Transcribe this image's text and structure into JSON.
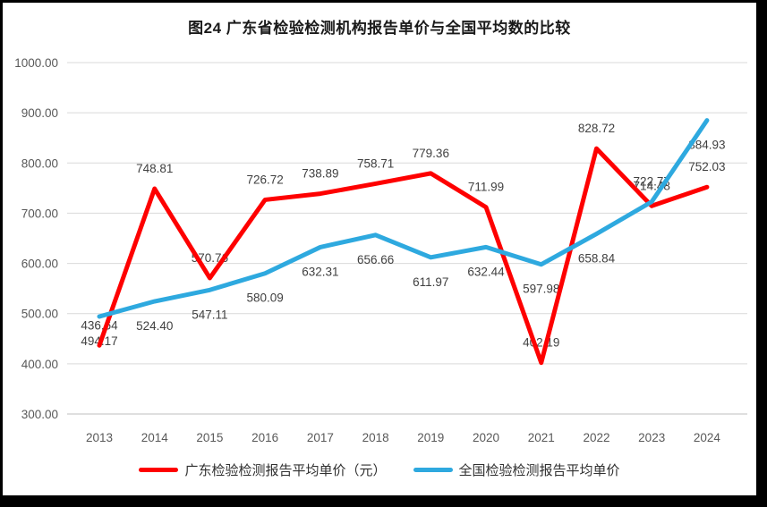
{
  "title": "图24  广东省检验检测机构报告单价与全国平均数的比较",
  "chart_data": {
    "type": "line",
    "title": "图24  广东省检验检测机构报告单价与全国平均数的比较",
    "categories": [
      "2013",
      "2014",
      "2015",
      "2016",
      "2017",
      "2018",
      "2019",
      "2020",
      "2021",
      "2022",
      "2023",
      "2024"
    ],
    "series": [
      {
        "name": "广东检验检测报告平均单价（元）",
        "color": "#FE0000",
        "values": [
          436.64,
          748.81,
          570.76,
          726.72,
          738.89,
          758.71,
          779.36,
          711.99,
          402.19,
          828.72,
          714.48,
          752.03
        ],
        "label_position": "above",
        "label_exceptions": {}
      },
      {
        "name": "全国检验检测报告平均单价",
        "color": "#2EA9DF",
        "values": [
          494.17,
          524.4,
          547.11,
          580.09,
          632.31,
          656.66,
          611.97,
          632.44,
          597.98,
          658.84,
          722.77,
          884.93
        ],
        "label_position": "below",
        "label_exceptions": {
          "10": "above"
        }
      }
    ],
    "ylim": [
      300,
      1000
    ],
    "ytick_step": 100,
    "ytick_labels": [
      "1000.00",
      "900.00",
      "800.00",
      "700.00",
      "600.00",
      "500.00",
      "400.00",
      "300.00"
    ],
    "grid": true,
    "legend_position": "bottom",
    "xlabel": "",
    "ylabel": ""
  },
  "legend": {
    "items": [
      {
        "label": "广东检验检测报告平均单价（元）",
        "color": "#FE0000"
      },
      {
        "label": "全国检验检测报告平均单价",
        "color": "#2EA9DF"
      }
    ]
  },
  "colors": {
    "background": "#FFFFFF",
    "frame": "#000000",
    "gridline": "#D9D9D9",
    "axis_line": "#BFBFBF",
    "tick_label": "#595959",
    "data_label": "#404040"
  }
}
